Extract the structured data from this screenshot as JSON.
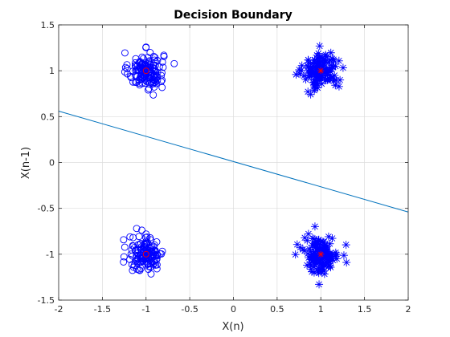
{
  "chart_data": {
    "type": "scatter",
    "title": "Decision Boundary",
    "xlabel": "X(n)",
    "ylabel": "X(n-1)",
    "xlim": [
      -2,
      2
    ],
    "ylim": [
      -1.5,
      1.5
    ],
    "xticks": [
      -2,
      -1.5,
      -1,
      -0.5,
      0,
      0.5,
      1,
      1.5,
      2
    ],
    "yticks": [
      -1.5,
      -1,
      -0.5,
      0,
      0.5,
      1,
      1.5
    ],
    "xtick_labels": [
      "-2",
      "-1.5",
      "-1",
      "-0.5",
      "0",
      "0.5",
      "1",
      "1.5",
      "2"
    ],
    "ytick_labels": [
      "-1.5",
      "-1",
      "-0.5",
      "0",
      "0.5",
      "1",
      "1.5"
    ],
    "grid": true,
    "colors": {
      "points": "#0000ff",
      "centers": "#ff0000",
      "boundary": "#0072bd",
      "grid": "#dcdcdc",
      "axis": "#262626"
    },
    "clusters": [
      {
        "marker": "o",
        "center": [
          -1,
          1
        ],
        "spread": 0.1,
        "count": 150
      },
      {
        "marker": "*",
        "center": [
          1,
          1
        ],
        "spread": 0.1,
        "count": 150
      },
      {
        "marker": "o",
        "center": [
          -1,
          -1
        ],
        "spread": 0.1,
        "count": 150
      },
      {
        "marker": "*",
        "center": [
          1,
          -1
        ],
        "spread": 0.1,
        "count": 150
      }
    ],
    "centers": [
      {
        "marker": "o",
        "x": -1,
        "y": 1
      },
      {
        "marker": "*",
        "x": 1,
        "y": 1
      },
      {
        "marker": "o",
        "x": -1,
        "y": -1
      },
      {
        "marker": "*",
        "x": 1,
        "y": -1
      }
    ],
    "boundary": {
      "x": [
        -2,
        2
      ],
      "y": [
        0.56,
        -0.54
      ]
    }
  }
}
